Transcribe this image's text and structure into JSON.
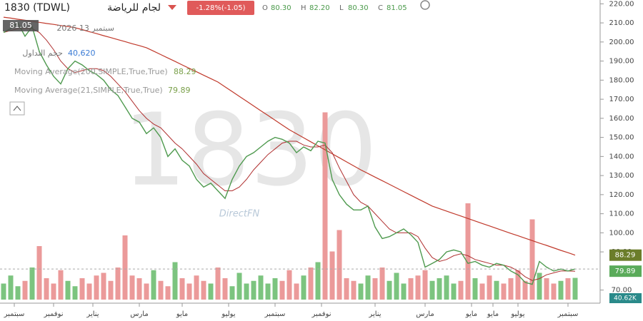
{
  "chart_data": {
    "type": "line",
    "title": "1830 (TDWL)",
    "subtitle": "لجام للرياضة",
    "change": "-1.28%(-1.05)",
    "ohlc_labels": [
      "O",
      "H",
      "L",
      "C"
    ],
    "ohlc_values": [
      "80.30",
      "82.20",
      "80.30",
      "81.05"
    ],
    "date": "سبتمبر 13 2026",
    "volume_title": "حجم التداول",
    "volume_text": "40,620",
    "volume_label": "40.62K",
    "watermark": "1830",
    "brand": "DirectFN",
    "last_price": 81.05,
    "xlim": [
      -0.5,
      83.5
    ],
    "ylim": [
      65,
      222
    ],
    "y2lim": [
      0,
      400
    ],
    "grid": false,
    "xticks": [
      {
        "value": 1.5,
        "label": "سبتمبر"
      },
      {
        "value": 7,
        "label": "نوفمبر"
      },
      {
        "value": 12.5,
        "label": "يناير"
      },
      {
        "value": 19,
        "label": "مارس"
      },
      {
        "value": 25,
        "label": "مايو"
      },
      {
        "value": 31.5,
        "label": "يوليو"
      },
      {
        "value": 38,
        "label": "سبتمبر"
      },
      {
        "value": 44.5,
        "label": "نوفمبر"
      },
      {
        "value": 52,
        "label": "يناير"
      },
      {
        "value": 59,
        "label": "مارس"
      },
      {
        "value": 65.5,
        "label": "مايو"
      },
      {
        "value": 68.5,
        "label": "مايو"
      },
      {
        "value": 72,
        "label": "يوليو"
      },
      {
        "value": 79,
        "label": "سبتمبر"
      }
    ],
    "yticks": [
      {
        "value": 220,
        "label": "220.00"
      },
      {
        "value": 210,
        "label": "210.00"
      },
      {
        "value": 200,
        "label": "200.00"
      },
      {
        "value": 190,
        "label": "190.00"
      },
      {
        "value": 180,
        "label": "180.00"
      },
      {
        "value": 170,
        "label": "170.00"
      },
      {
        "value": 160,
        "label": "160.00"
      },
      {
        "value": 150,
        "label": "150.00"
      },
      {
        "value": 140,
        "label": "140.00"
      },
      {
        "value": 130,
        "label": "130.00"
      },
      {
        "value": 120,
        "label": "120.00"
      },
      {
        "value": 110,
        "label": "110.00"
      },
      {
        "value": 100,
        "label": "100.00"
      },
      {
        "value": 90,
        "label": "90.00"
      },
      {
        "value": 70,
        "label": "70.00"
      }
    ],
    "x": [
      0,
      1,
      2,
      3,
      4,
      5,
      6,
      7,
      8,
      9,
      10,
      11,
      12,
      13,
      14,
      15,
      16,
      17,
      18,
      19,
      20,
      21,
      22,
      23,
      24,
      25,
      26,
      27,
      28,
      29,
      30,
      31,
      32,
      33,
      34,
      35,
      36,
      37,
      38,
      39,
      40,
      41,
      42,
      43,
      44,
      45,
      46,
      47,
      48,
      49,
      50,
      51,
      52,
      53,
      54,
      55,
      56,
      57,
      58,
      59,
      60,
      61,
      62,
      63,
      64,
      65,
      66,
      67,
      68,
      69,
      70,
      71,
      72,
      73,
      74,
      75,
      76,
      77,
      78,
      79,
      80
    ],
    "series": [
      {
        "name": "Moving Average(200,SIMPLE,True,True)",
        "color": "#c0392b",
        "width": 1.2,
        "values": [
          213,
          212.5,
          211.9,
          211.4,
          210.8,
          210.3,
          209.7,
          209.2,
          208.6,
          208.1,
          207.5,
          206.5,
          205.4,
          204.4,
          203.3,
          202.3,
          201.2,
          200.2,
          199.1,
          198.1,
          197,
          195.2,
          193.4,
          191.6,
          189.8,
          188,
          186.2,
          184.4,
          182.6,
          180.8,
          179,
          176.5,
          174,
          171.5,
          169,
          166.5,
          164,
          161.5,
          159,
          156.5,
          154,
          151.9,
          149.8,
          147.7,
          145.6,
          143.5,
          141.4,
          139.3,
          137.2,
          135.1,
          133,
          131.1,
          129.2,
          127.3,
          125.4,
          123.5,
          121.6,
          119.7,
          117.8,
          115.9,
          114,
          112.7,
          111.4,
          110.1,
          108.8,
          107.5,
          106.2,
          104.9,
          103.6,
          102.3,
          101,
          99.7,
          98.5,
          97.2,
          95.9,
          94.6,
          93.4,
          92.1,
          90.8,
          89.6,
          88.29
        ]
      },
      {
        "name": "Moving Average(21,SIMPLE,True,True)",
        "color": "#b03030",
        "width": 1,
        "values": [
          205,
          206,
          207,
          207,
          207,
          205,
          201,
          196,
          190,
          186,
          184,
          185,
          186,
          186,
          185,
          182,
          178,
          174,
          169,
          164,
          160,
          157,
          155,
          151,
          147,
          144,
          140,
          136,
          131,
          128,
          125,
          122,
          122,
          124,
          128,
          133,
          137,
          141,
          144,
          147,
          148,
          148,
          146,
          145,
          145,
          146,
          142,
          134,
          127,
          120,
          116,
          114,
          110,
          106,
          102,
          100,
          100,
          100,
          98,
          92,
          87,
          85,
          86,
          88,
          89,
          88,
          86,
          85,
          84,
          83,
          83,
          82,
          80,
          77,
          75,
          76,
          78,
          79,
          80,
          80,
          79.89
        ]
      },
      {
        "name": "1830",
        "color": "#4f9a4f",
        "width": 1.4,
        "values": [
          205,
          207,
          210,
          203,
          208,
          195,
          188,
          182,
          178,
          186,
          190,
          188,
          185,
          183,
          180,
          175,
          172,
          166,
          160,
          158,
          152,
          155,
          150,
          140,
          144,
          138,
          135,
          128,
          124,
          126,
          122,
          118,
          128,
          135,
          140,
          142,
          145,
          148,
          150,
          149,
          147,
          142,
          145,
          143,
          148,
          147,
          128,
          120,
          115,
          112,
          112,
          114,
          103,
          97,
          98,
          100,
          102,
          99,
          95,
          82,
          84,
          86,
          90,
          91,
          90,
          84,
          85,
          83,
          82,
          84,
          83,
          80,
          78,
          74,
          73,
          85,
          82,
          80,
          81,
          80,
          81.05
        ]
      },
      {
        "name": "حجم التداول",
        "axis": "y2",
        "up_color": "#7cc47f",
        "down_color": "#eb9a9a",
        "values": [
          30,
          45,
          25,
          35,
          60,
          100,
          40,
          30,
          55,
          35,
          25,
          40,
          30,
          45,
          50,
          35,
          60,
          120,
          45,
          40,
          30,
          55,
          35,
          25,
          70,
          40,
          30,
          45,
          35,
          30,
          60,
          40,
          25,
          50,
          30,
          35,
          45,
          30,
          40,
          35,
          55,
          30,
          45,
          60,
          70,
          350,
          90,
          130,
          40,
          35,
          30,
          45,
          40,
          60,
          35,
          50,
          30,
          40,
          45,
          55,
          35,
          40,
          45,
          30,
          35,
          180,
          40,
          30,
          45,
          35,
          30,
          40,
          55,
          35,
          150,
          50,
          40,
          30,
          35,
          40,
          40.62
        ]
      }
    ]
  }
}
